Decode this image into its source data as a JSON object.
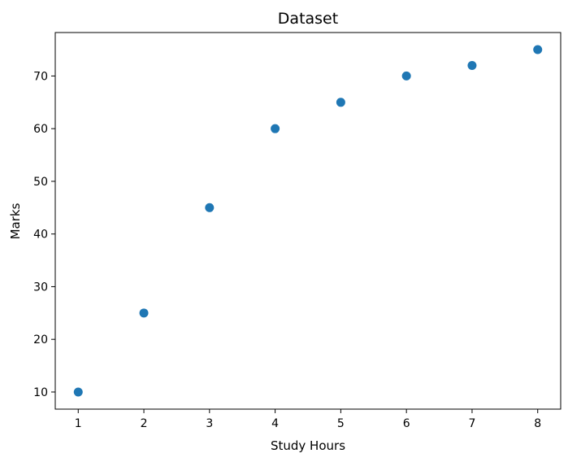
{
  "chart_data": {
    "type": "scatter",
    "title": "Dataset",
    "xlabel": "Study Hours",
    "ylabel": "Marks",
    "x": [
      1,
      2,
      3,
      4,
      5,
      6,
      7,
      8
    ],
    "y": [
      10,
      25,
      45,
      60,
      65,
      70,
      72,
      75
    ],
    "xlim": [
      0.65,
      8.35
    ],
    "ylim": [
      6.75,
      78.25
    ],
    "xticks": [
      1,
      2,
      3,
      4,
      5,
      6,
      7,
      8
    ],
    "yticks": [
      10,
      20,
      30,
      40,
      50,
      60,
      70
    ],
    "grid": false,
    "marker_color": "#1f77b4"
  }
}
